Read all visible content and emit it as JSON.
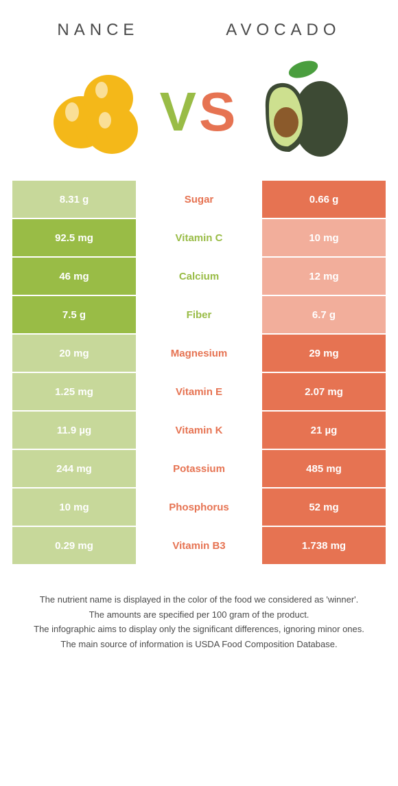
{
  "header": {
    "left_title": "NANCE",
    "right_title": "AVOCADO"
  },
  "colors": {
    "nance": "#99bc46",
    "avocado": "#e67352",
    "nance_faded": "#c7d89a",
    "avocado_faded": "#f2ae9b"
  },
  "rows": [
    {
      "left": "8.31 g",
      "mid": "Sugar",
      "right": "0.66 g",
      "winner": "avocado"
    },
    {
      "left": "92.5 mg",
      "mid": "Vitamin C",
      "right": "10 mg",
      "winner": "nance"
    },
    {
      "left": "46 mg",
      "mid": "Calcium",
      "right": "12 mg",
      "winner": "nance"
    },
    {
      "left": "7.5 g",
      "mid": "Fiber",
      "right": "6.7 g",
      "winner": "nance"
    },
    {
      "left": "20 mg",
      "mid": "Magnesium",
      "right": "29 mg",
      "winner": "avocado"
    },
    {
      "left": "1.25 mg",
      "mid": "Vitamin E",
      "right": "2.07 mg",
      "winner": "avocado"
    },
    {
      "left": "11.9 µg",
      "mid": "Vitamin K",
      "right": "21 µg",
      "winner": "avocado"
    },
    {
      "left": "244 mg",
      "mid": "Potassium",
      "right": "485 mg",
      "winner": "avocado"
    },
    {
      "left": "10 mg",
      "mid": "Phosphorus",
      "right": "52 mg",
      "winner": "avocado"
    },
    {
      "left": "0.29 mg",
      "mid": "Vitamin B3",
      "right": "1.738 mg",
      "winner": "avocado"
    }
  ],
  "footer": {
    "line1": "The nutrient name is displayed in the color of the food we considered as 'winner'.",
    "line2": "The amounts are specified per 100 gram of the product.",
    "line3": "The infographic aims to display only the significant differences, ignoring minor ones.",
    "line4": "The main source of information is USDA Food Composition Database."
  }
}
